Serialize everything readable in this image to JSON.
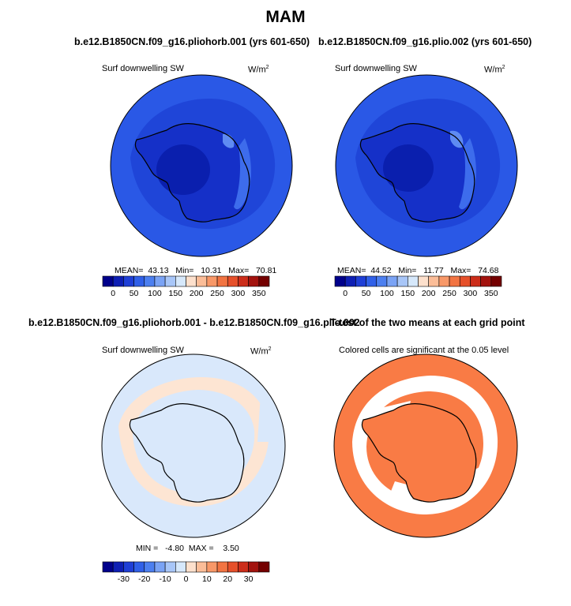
{
  "title": "MAM",
  "units_base": "W/m",
  "units_exp": "2",
  "panels": {
    "p1": {
      "title": "b.e12.B1850CN.f09_g16.pliohorb.001 (yrs 601-650)",
      "variable": "Surf downwelling SW",
      "mean_label": "MEAN=",
      "mean": "43.13",
      "min_label": "Min=",
      "min": "10.31",
      "max_label": "Max=",
      "max": "70.81"
    },
    "p2": {
      "title": "b.e12.B1850CN.f09_g16.plio.002 (yrs 601-650)",
      "variable": "Surf downwelling SW",
      "mean_label": "MEAN=",
      "mean": "44.52",
      "min_label": "Min=",
      "min": "11.77",
      "max_label": "Max=",
      "max": "74.68"
    },
    "p3": {
      "title": "b.e12.B1850CN.f09_g16.pliohorb.001 - b.e12.B1850CN.f09_g16.plio.002",
      "variable": "Surf downwelling SW",
      "min_label": "MIN =",
      "min": "-4.80",
      "max_label": "MAX =",
      "max": "3.50"
    },
    "p4": {
      "title": "T-test of the two means at each grid point",
      "subtitle": "Colored cells are significant at the 0.05 level"
    }
  },
  "colorbar_abs": {
    "colors": [
      "#00008b",
      "#0e1fb4",
      "#1f3fd6",
      "#3060e8",
      "#4c7ff0",
      "#7aa3f5",
      "#a8c6f8",
      "#d6e8fb",
      "#fde0cc",
      "#fbbd98",
      "#f89868",
      "#f27442",
      "#e6502a",
      "#cc2d1a",
      "#a3130e",
      "#740000"
    ],
    "ticks": [
      "0",
      "50",
      "100",
      "150",
      "200",
      "250",
      "300",
      "350"
    ]
  },
  "colorbar_diff": {
    "colors": [
      "#00008b",
      "#0e1fb4",
      "#1f3fd6",
      "#3060e8",
      "#4c7ff0",
      "#7aa3f5",
      "#a8c6f8",
      "#d6e8fb",
      "#fde0cc",
      "#fbbd98",
      "#f89868",
      "#f27442",
      "#e6502a",
      "#cc2d1a",
      "#a3130e",
      "#740000"
    ],
    "ticks": [
      "-30",
      "-20",
      "-10",
      "0",
      "10",
      "20",
      "30"
    ]
  },
  "map_colors": {
    "ocean_outer": "#2a58e6",
    "ring_mid": "#1f45d8",
    "interior": "#1530c8",
    "pole": "#0a1fae",
    "coast_light": "#5f8bf2",
    "diff_bg": "#d9e8fb",
    "diff_pos": "#fde5d3",
    "ttest": "#f97b45"
  },
  "chart_data": [
    {
      "type": "heatmap",
      "title": "b.e12.B1850CN.f09_g16.pliohorb.001 (yrs 601-650)",
      "variable": "Surf downwelling SW",
      "units": "W/m2",
      "stats": {
        "mean": 43.13,
        "min": 10.31,
        "max": 70.81
      },
      "colorbar_ticks": [
        0,
        50,
        100,
        150,
        200,
        250,
        300,
        350
      ]
    },
    {
      "type": "heatmap",
      "title": "b.e12.B1850CN.f09_g16.plio.002 (yrs 601-650)",
      "variable": "Surf downwelling SW",
      "units": "W/m2",
      "stats": {
        "mean": 44.52,
        "min": 11.77,
        "max": 74.68
      },
      "colorbar_ticks": [
        0,
        50,
        100,
        150,
        200,
        250,
        300,
        350
      ]
    },
    {
      "type": "heatmap",
      "title": "b.e12.B1850CN.f09_g16.pliohorb.001 - b.e12.B1850CN.f09_g16.plio.002",
      "variable": "Surf downwelling SW",
      "units": "W/m2",
      "stats": {
        "min": -4.8,
        "max": 3.5
      },
      "colorbar_ticks": [
        -30,
        -20,
        -10,
        0,
        10,
        20,
        30
      ]
    },
    {
      "type": "heatmap",
      "title": "T-test of the two means at each grid point",
      "subtitle": "Colored cells are significant at the 0.05 level"
    }
  ]
}
